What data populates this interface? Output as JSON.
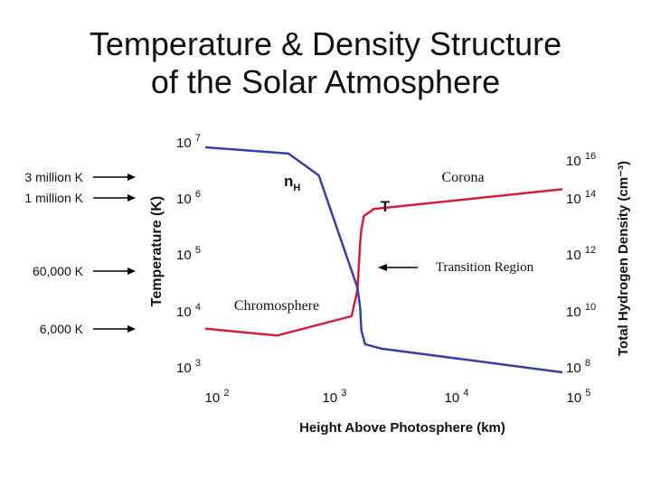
{
  "title_line1": "Temperature & Density Structure",
  "title_line2": "of the Solar Atmosphere",
  "chart_data": {
    "type": "line",
    "xlabel": "Height Above Photosphere (km)",
    "ylabel_left": "Temperature (K)",
    "ylabel_right": "Total Hydrogen Density (cm⁻³)",
    "x_scale": "log",
    "x_ticks": [
      "10 2",
      "10 3",
      "10 4",
      "10 5"
    ],
    "y_left_ticks": [
      "10 7",
      "10 6",
      "10 5",
      "10 4",
      "10 3"
    ],
    "y_right_ticks": [
      "10 16",
      "10 14",
      "10 12",
      "10 10",
      "10 8"
    ],
    "xlim": [
      100,
      100000
    ],
    "ylim_left": [
      1000,
      10000000
    ],
    "ylim_right": [
      100000000,
      10000000000000000
    ],
    "series": [
      {
        "name": "T",
        "axis": "left",
        "color": "#d0203c",
        "x": [
          100,
          400,
          1700,
          1900,
          2000,
          2050,
          2150,
          2600,
          100000
        ],
        "y": [
          6000,
          4500,
          10000,
          30000,
          200000,
          350000,
          600000,
          800000,
          1800000
        ]
      },
      {
        "name": "nH",
        "axis": "right",
        "color": "#3c3ca6",
        "x": [
          100,
          500,
          900,
          1900,
          2000,
          2050,
          2200,
          3000,
          100000
        ],
        "y": [
          1e+16,
          6000000000000000.0,
          1000000000000000.0,
          100000000000.0,
          20000000000.0,
          3000000000.0,
          1000000000.0,
          700000000.0,
          100000000.0
        ]
      }
    ],
    "annotations": {
      "series_T_label": "T",
      "series_nH_main": "n",
      "series_nH_sub": "H",
      "corona": "Corona",
      "transition_region": "Transition Region",
      "chromosphere": "Chromosphere"
    },
    "temperature_markers": [
      "3 million K",
      "1 million K",
      "60,000 K",
      "6,000 K"
    ]
  }
}
